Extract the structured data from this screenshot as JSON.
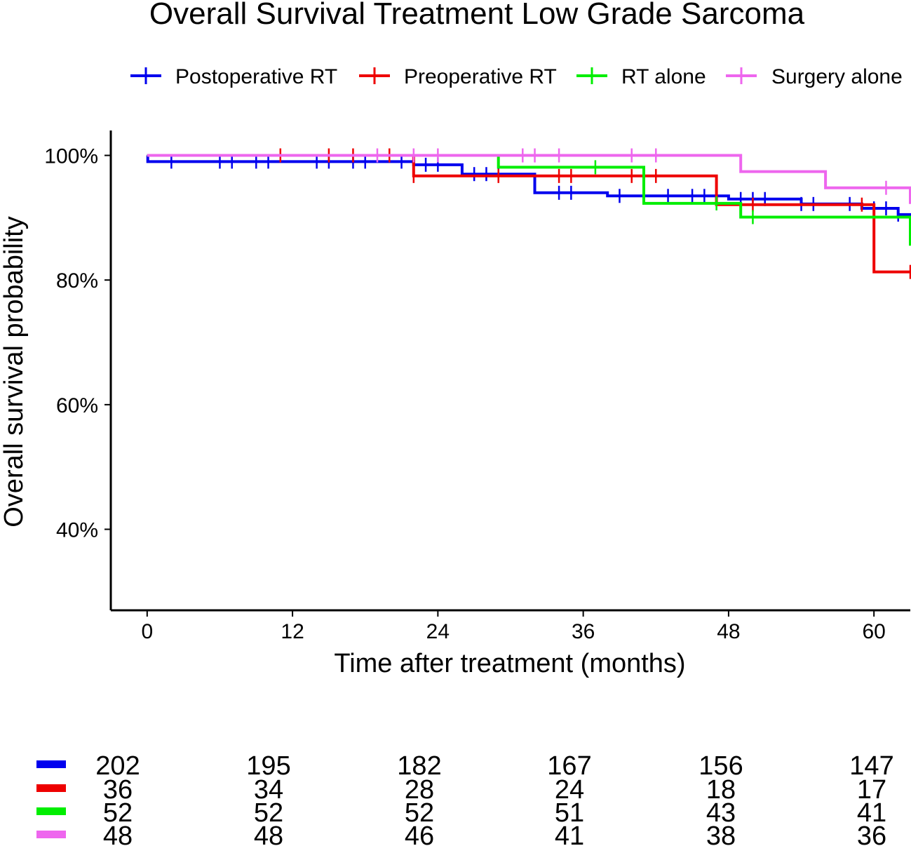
{
  "chart_data": {
    "type": "line",
    "subtype": "kaplan-meier",
    "title": "Overall Survival Treatment Low Grade Sarcoma",
    "xlabel": "Time after treatment (months)",
    "ylabel": "Overall survival probability",
    "xlim": [
      -3,
      63
    ],
    "ylim": [
      0.27,
      1.04
    ],
    "x_ticks": [
      0,
      12,
      24,
      36,
      48,
      60
    ],
    "x_tick_labels": [
      "0",
      "12",
      "24",
      "36",
      "48",
      "60"
    ],
    "y_ticks": [
      0.4,
      0.6,
      0.8,
      1.0
    ],
    "y_tick_labels": [
      "40%",
      "60%",
      "80%",
      "100%"
    ],
    "legend_position": "top",
    "series": [
      {
        "name": "Postoperative RT",
        "color": "#0000ee",
        "steps": [
          [
            0,
            1.0
          ],
          [
            -1,
            0.99
          ],
          [
            22,
            0.985
          ],
          [
            26,
            0.97
          ],
          [
            32,
            0.94
          ],
          [
            38,
            0.935
          ],
          [
            48,
            0.93
          ],
          [
            54,
            0.922
          ],
          [
            59,
            0.915
          ],
          [
            62,
            0.905
          ],
          [
            63,
            0.902
          ]
        ],
        "censor_times": [
          2,
          6,
          7,
          9,
          10,
          14,
          15,
          17,
          18,
          21,
          22,
          23,
          24,
          27,
          28,
          29,
          34,
          35,
          39,
          43,
          45,
          46,
          47,
          49,
          50,
          51,
          54,
          55,
          58,
          60,
          61,
          62
        ]
      },
      {
        "name": "Preoperative RT",
        "color": "#ee0000",
        "steps": [
          [
            0,
            1.0
          ],
          [
            22,
            0.967
          ],
          [
            47,
            0.921
          ],
          [
            60,
            0.813
          ],
          [
            63,
            0.813
          ]
        ],
        "censor_times": [
          11,
          15,
          17,
          20,
          22,
          29,
          34,
          35,
          40,
          42,
          50,
          59,
          63
        ]
      },
      {
        "name": "RT alone",
        "color": "#00ee00",
        "steps": [
          [
            0,
            1.0
          ],
          [
            29,
            0.981
          ],
          [
            41,
            0.923
          ],
          [
            49,
            0.901
          ],
          [
            63,
            0.855
          ]
        ],
        "censor_times": [
          37,
          47,
          50
        ]
      },
      {
        "name": "Surgery alone",
        "color": "#ee66ee",
        "steps": [
          [
            0,
            1.0
          ],
          [
            49,
            0.974
          ],
          [
            56,
            0.948
          ],
          [
            63,
            0.922
          ]
        ],
        "censor_times": [
          19,
          22,
          24,
          31,
          32,
          34,
          40,
          42,
          61
        ]
      }
    ],
    "risk_table": {
      "times": [
        0,
        12,
        24,
        36,
        48,
        60
      ],
      "rows": [
        {
          "name": "Postoperative RT",
          "color": "#0000ee",
          "counts": [
            "202",
            "195",
            "182",
            "167",
            "156",
            "147"
          ]
        },
        {
          "name": "Preoperative RT",
          "color": "#ee0000",
          "counts": [
            "36",
            "34",
            "28",
            "24",
            "18",
            "17"
          ]
        },
        {
          "name": "RT alone",
          "color": "#00ee00",
          "counts": [
            "52",
            "52",
            "52",
            "51",
            "43",
            "41"
          ]
        },
        {
          "name": "Surgery alone",
          "color": "#ee66ee",
          "counts": [
            "48",
            "48",
            "46",
            "41",
            "38",
            "36"
          ]
        }
      ]
    }
  }
}
